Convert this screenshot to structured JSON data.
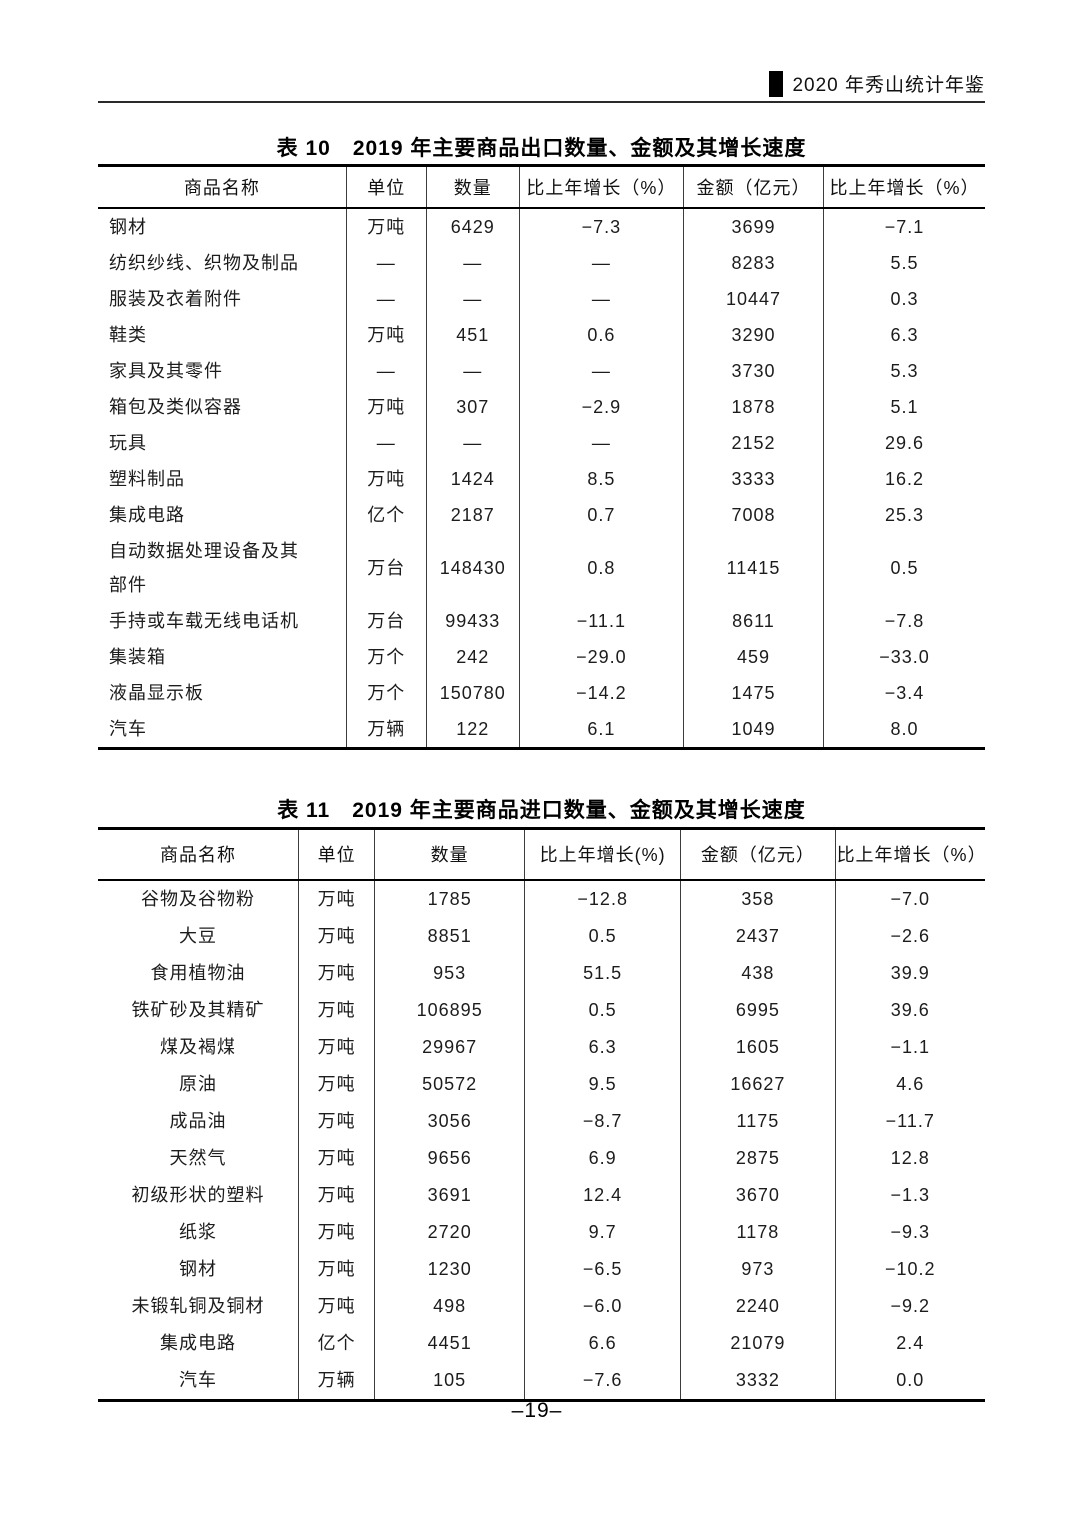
{
  "page_header": {
    "yearbook_title": "2020 年秀山统计年鉴"
  },
  "export_table": {
    "title": "表 10　2019 年主要商品出口数量、金额及其增长速度",
    "headers": [
      "商品名称",
      "单位",
      "数量",
      "比上年增长（%）",
      "金额（亿元）",
      "比上年增长（%）"
    ],
    "rows": [
      [
        "钢材",
        "万吨",
        "6429",
        "−7.3",
        "3699",
        "−7.1"
      ],
      [
        "纺织纱线、织物及制品",
        "—",
        "—",
        "—",
        "8283",
        "5.5"
      ],
      [
        "服装及衣着附件",
        "—",
        "—",
        "—",
        "10447",
        "0.3"
      ],
      [
        "鞋类",
        "万吨",
        "451",
        "0.6",
        "3290",
        "6.3"
      ],
      [
        "家具及其零件",
        "—",
        "—",
        "—",
        "3730",
        "5.3"
      ],
      [
        "箱包及类似容器",
        "万吨",
        "307",
        "−2.9",
        "1878",
        "5.1"
      ],
      [
        "玩具",
        "—",
        "—",
        "—",
        "2152",
        "29.6"
      ],
      [
        "塑料制品",
        "万吨",
        "1424",
        "8.5",
        "3333",
        "16.2"
      ],
      [
        "集成电路",
        "亿个",
        "2187",
        "0.7",
        "7008",
        "25.3"
      ],
      [
        "自动数据处理设备及其\n部件",
        "万台",
        "148430",
        "0.8",
        "11415",
        "0.5"
      ],
      [
        "手持或车载无线电话机",
        "万台",
        "99433",
        "−11.1",
        "8611",
        "−7.8"
      ],
      [
        "集装箱",
        "万个",
        "242",
        "−29.0",
        "459",
        "−33.0"
      ],
      [
        "液晶显示板",
        "万个",
        "150780",
        "−14.2",
        "1475",
        "−3.4"
      ],
      [
        "汽车",
        "万辆",
        "122",
        "6.1",
        "1049",
        "8.0"
      ]
    ]
  },
  "import_table": {
    "title": "表 11　2019 年主要商品进口数量、金额及其增长速度",
    "headers": [
      "商品名称",
      "单位",
      "数量",
      "比上年增长(%)",
      "金额（亿元）",
      "比上年增长（%）"
    ],
    "rows": [
      [
        "谷物及谷物粉",
        "万吨",
        "1785",
        "−12.8",
        "358",
        "−7.0"
      ],
      [
        "大豆",
        "万吨",
        "8851",
        "0.5",
        "2437",
        "−2.6"
      ],
      [
        "食用植物油",
        "万吨",
        "953",
        "51.5",
        "438",
        "39.9"
      ],
      [
        "铁矿砂及其精矿",
        "万吨",
        "106895",
        "0.5",
        "6995",
        "39.6"
      ],
      [
        "煤及褐煤",
        "万吨",
        "29967",
        "6.3",
        "1605",
        "−1.1"
      ],
      [
        "原油",
        "万吨",
        "50572",
        "9.5",
        "16627",
        "4.6"
      ],
      [
        "成品油",
        "万吨",
        "3056",
        "−8.7",
        "1175",
        "−11.7"
      ],
      [
        "天然气",
        "万吨",
        "9656",
        "6.9",
        "2875",
        "12.8"
      ],
      [
        "初级形状的塑料",
        "万吨",
        "3691",
        "12.4",
        "3670",
        "−1.3"
      ],
      [
        "纸浆",
        "万吨",
        "2720",
        "9.7",
        "1178",
        "−9.3"
      ],
      [
        "钢材",
        "万吨",
        "1230",
        "−6.5",
        "973",
        "−10.2"
      ],
      [
        "未锻轧铜及铜材",
        "万吨",
        "498",
        "−6.0",
        "2240",
        "−9.2"
      ],
      [
        "集成电路",
        "亿个",
        "4451",
        "6.6",
        "21079",
        "2.4"
      ],
      [
        "汽车",
        "万辆",
        "105",
        "−7.6",
        "3332",
        "0.0"
      ]
    ]
  },
  "footer": {
    "page_number": "–19–"
  }
}
